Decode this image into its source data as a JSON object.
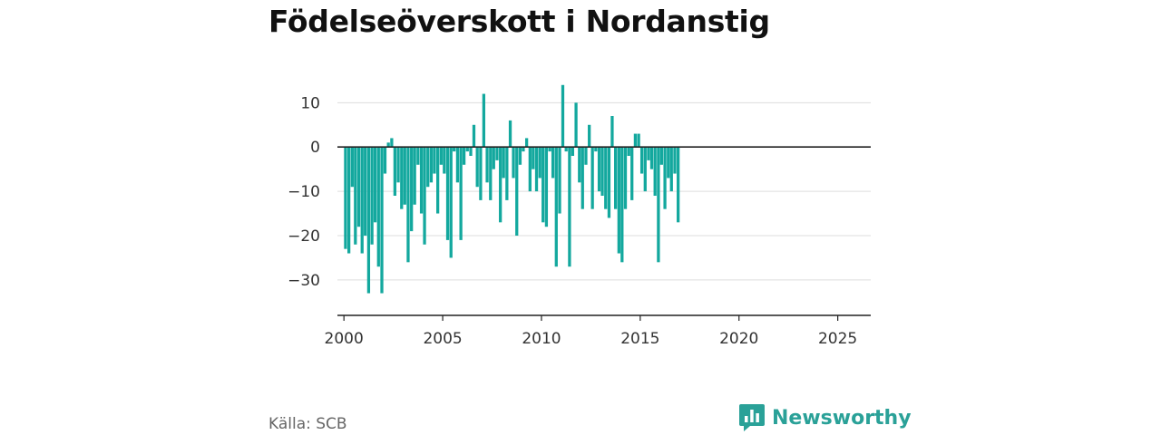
{
  "header": {
    "title": "Födelseöverskott i Nordanstig"
  },
  "footer": {
    "source": "Källa: SCB",
    "brand": "Newsworthy"
  },
  "colors": {
    "bar": "#13a89e",
    "brand": "#2aa198",
    "grid": "#dddddd",
    "axis": "#222222",
    "text": "#333333"
  },
  "chart_data": {
    "type": "bar",
    "title": "Födelseöverskott i Nordanstig",
    "xlabel": "",
    "ylabel": "",
    "ylim": [
      -38,
      16
    ],
    "xlim": [
      1999.67,
      2026.67
    ],
    "xticks": [
      2000,
      2005,
      2010,
      2015,
      2020,
      2025
    ],
    "yticks": [
      10,
      0,
      -10,
      -20,
      -30
    ],
    "grid": true,
    "bar_width_years": 0.15,
    "series": [
      {
        "values": [
          {
            "x": 2000.08,
            "y": -23
          },
          {
            "x": 2000.25,
            "y": -24
          },
          {
            "x": 2000.42,
            "y": -9
          },
          {
            "x": 2000.58,
            "y": -22
          },
          {
            "x": 2000.75,
            "y": -18
          },
          {
            "x": 2000.92,
            "y": -24
          },
          {
            "x": 2001.08,
            "y": -20
          },
          {
            "x": 2001.25,
            "y": -33
          },
          {
            "x": 2001.42,
            "y": -22
          },
          {
            "x": 2001.58,
            "y": -17
          },
          {
            "x": 2001.75,
            "y": -27
          },
          {
            "x": 2001.92,
            "y": -33
          },
          {
            "x": 2002.08,
            "y": -6
          },
          {
            "x": 2002.25,
            "y": 1
          },
          {
            "x": 2002.42,
            "y": 2
          },
          {
            "x": 2002.58,
            "y": -11
          },
          {
            "x": 2002.75,
            "y": -8
          },
          {
            "x": 2002.92,
            "y": -14
          },
          {
            "x": 2003.08,
            "y": -13
          },
          {
            "x": 2003.25,
            "y": -26
          },
          {
            "x": 2003.42,
            "y": -19
          },
          {
            "x": 2003.58,
            "y": -13
          },
          {
            "x": 2003.75,
            "y": -4
          },
          {
            "x": 2003.92,
            "y": -15
          },
          {
            "x": 2004.08,
            "y": -22
          },
          {
            "x": 2004.25,
            "y": -9
          },
          {
            "x": 2004.42,
            "y": -8
          },
          {
            "x": 2004.58,
            "y": -6
          },
          {
            "x": 2004.75,
            "y": -15
          },
          {
            "x": 2004.92,
            "y": -4
          },
          {
            "x": 2005.08,
            "y": -6
          },
          {
            "x": 2005.25,
            "y": -21
          },
          {
            "x": 2005.42,
            "y": -25
          },
          {
            "x": 2005.58,
            "y": -1
          },
          {
            "x": 2005.75,
            "y": -8
          },
          {
            "x": 2005.92,
            "y": -21
          },
          {
            "x": 2006.08,
            "y": -4
          },
          {
            "x": 2006.25,
            "y": -1
          },
          {
            "x": 2006.42,
            "y": -2
          },
          {
            "x": 2006.58,
            "y": 5
          },
          {
            "x": 2006.75,
            "y": -9
          },
          {
            "x": 2006.92,
            "y": -12
          },
          {
            "x": 2007.08,
            "y": 12
          },
          {
            "x": 2007.25,
            "y": -8
          },
          {
            "x": 2007.42,
            "y": -12
          },
          {
            "x": 2007.58,
            "y": -5
          },
          {
            "x": 2007.75,
            "y": -3
          },
          {
            "x": 2007.92,
            "y": -17
          },
          {
            "x": 2008.08,
            "y": -7
          },
          {
            "x": 2008.25,
            "y": -12
          },
          {
            "x": 2008.42,
            "y": 6
          },
          {
            "x": 2008.58,
            "y": -7
          },
          {
            "x": 2008.75,
            "y": -20
          },
          {
            "x": 2008.92,
            "y": -4
          },
          {
            "x": 2009.08,
            "y": -1
          },
          {
            "x": 2009.25,
            "y": 2
          },
          {
            "x": 2009.42,
            "y": -10
          },
          {
            "x": 2009.58,
            "y": -5
          },
          {
            "x": 2009.75,
            "y": -10
          },
          {
            "x": 2009.92,
            "y": -7
          },
          {
            "x": 2010.08,
            "y": -17
          },
          {
            "x": 2010.25,
            "y": -18
          },
          {
            "x": 2010.42,
            "y": -1
          },
          {
            "x": 2010.58,
            "y": -7
          },
          {
            "x": 2010.75,
            "y": -27
          },
          {
            "x": 2010.92,
            "y": -15
          },
          {
            "x": 2011.08,
            "y": 14
          },
          {
            "x": 2011.25,
            "y": -1
          },
          {
            "x": 2011.42,
            "y": -27
          },
          {
            "x": 2011.58,
            "y": -2
          },
          {
            "x": 2011.75,
            "y": 10
          },
          {
            "x": 2011.92,
            "y": -8
          },
          {
            "x": 2012.08,
            "y": -14
          },
          {
            "x": 2012.25,
            "y": -4
          },
          {
            "x": 2012.42,
            "y": 5
          },
          {
            "x": 2012.58,
            "y": -14
          },
          {
            "x": 2012.75,
            "y": -1
          },
          {
            "x": 2012.92,
            "y": -10
          },
          {
            "x": 2013.08,
            "y": -11
          },
          {
            "x": 2013.25,
            "y": -14
          },
          {
            "x": 2013.42,
            "y": -16
          },
          {
            "x": 2013.58,
            "y": 7
          },
          {
            "x": 2013.75,
            "y": -14
          },
          {
            "x": 2013.92,
            "y": -24
          },
          {
            "x": 2014.08,
            "y": -26
          },
          {
            "x": 2014.25,
            "y": -14
          },
          {
            "x": 2014.42,
            "y": -2
          },
          {
            "x": 2014.58,
            "y": -12
          },
          {
            "x": 2014.75,
            "y": 3
          },
          {
            "x": 2014.92,
            "y": 3
          },
          {
            "x": 2015.08,
            "y": -6
          },
          {
            "x": 2015.25,
            "y": -10
          },
          {
            "x": 2015.42,
            "y": -3
          },
          {
            "x": 2015.58,
            "y": -5
          },
          {
            "x": 2015.75,
            "y": -11
          },
          {
            "x": 2015.92,
            "y": -26
          },
          {
            "x": 2016.08,
            "y": -4
          },
          {
            "x": 2016.25,
            "y": -14
          },
          {
            "x": 2016.42,
            "y": -7
          },
          {
            "x": 2016.58,
            "y": -10
          },
          {
            "x": 2016.75,
            "y": -6
          },
          {
            "x": 2016.92,
            "y": -17
          }
        ]
      }
    ]
  }
}
